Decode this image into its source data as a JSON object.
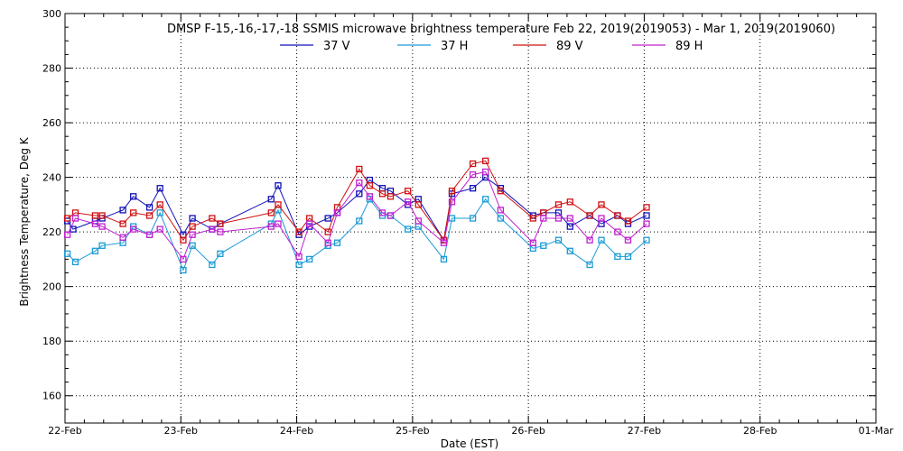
{
  "chart_data": {
    "type": "line",
    "title": "DMSP F-15,-16,-17,-18 SSMIS microwave brightness temperature Feb 22, 2019(2019053) - Mar  1, 2019(2019060)",
    "xlabel": "Date (EST)",
    "ylabel": "Brightness Temperature, Deg K",
    "xlim": [
      0,
      7
    ],
    "ylim": [
      150,
      300
    ],
    "y_ticks": [
      160,
      180,
      200,
      220,
      240,
      260,
      280,
      300
    ],
    "x_ticks": [
      {
        "v": 0,
        "label": "22-Feb"
      },
      {
        "v": 1,
        "label": "23-Feb"
      },
      {
        "v": 2,
        "label": "24-Feb"
      },
      {
        "v": 3,
        "label": "25-Feb"
      },
      {
        "v": 4,
        "label": "26-Feb"
      },
      {
        "v": 5,
        "label": "27-Feb"
      },
      {
        "v": 6,
        "label": "28-Feb"
      },
      {
        "v": 7,
        "label": "01-Mar"
      }
    ],
    "grid": true,
    "legend_position": "top-center",
    "series": [
      {
        "name": "37 V",
        "color": "#1010b8",
        "x": [
          0.02,
          0.07,
          0.26,
          0.32,
          0.5,
          0.59,
          0.73,
          0.82,
          1.02,
          1.1,
          1.27,
          1.34,
          1.78,
          1.84,
          2.02,
          2.11,
          2.27,
          2.35,
          2.54,
          2.63,
          2.74,
          2.81,
          2.96,
          3.05,
          3.27,
          3.34,
          3.52,
          3.63,
          3.76,
          4.04,
          4.13,
          4.26,
          4.36,
          4.53,
          4.63,
          4.77,
          4.86,
          5.02
        ],
        "y": [
          224,
          221,
          224,
          225,
          228,
          233,
          229,
          236,
          219,
          225,
          221,
          223,
          232,
          237,
          219,
          222,
          225,
          227,
          234,
          239,
          236,
          235,
          230,
          232,
          217,
          234,
          236,
          240,
          236,
          226,
          227,
          227,
          222,
          226,
          223,
          226,
          223,
          226
        ]
      },
      {
        "name": "37 H",
        "color": "#1a9ad6",
        "x": [
          0.02,
          0.09,
          0.26,
          0.32,
          0.5,
          0.59,
          0.73,
          0.82,
          1.02,
          1.1,
          1.27,
          1.34,
          1.78,
          1.84,
          2.02,
          2.11,
          2.27,
          2.35,
          2.54,
          2.63,
          2.74,
          2.81,
          2.96,
          3.05,
          3.27,
          3.34,
          3.52,
          3.63,
          3.76,
          4.04,
          4.13,
          4.26,
          4.36,
          4.53,
          4.63,
          4.77,
          4.86,
          5.02
        ],
        "y": [
          212,
          209,
          213,
          215,
          216,
          222,
          219,
          227,
          206,
          215,
          208,
          212,
          223,
          228,
          208,
          210,
          215,
          216,
          224,
          232,
          226,
          226,
          221,
          222,
          210,
          225,
          225,
          232,
          225,
          214,
          215,
          217,
          213,
          208,
          217,
          211,
          211,
          217
        ]
      },
      {
        "name": "89 V",
        "color": "#d01010",
        "x": [
          0.02,
          0.09,
          0.26,
          0.32,
          0.5,
          0.59,
          0.73,
          0.82,
          1.02,
          1.1,
          1.27,
          1.34,
          1.78,
          1.84,
          2.02,
          2.11,
          2.27,
          2.35,
          2.54,
          2.63,
          2.74,
          2.81,
          2.96,
          3.05,
          3.27,
          3.34,
          3.52,
          3.63,
          3.76,
          4.04,
          4.13,
          4.26,
          4.36,
          4.53,
          4.63,
          4.77,
          4.86,
          5.02
        ],
        "y": [
          225,
          227,
          226,
          226,
          223,
          227,
          226,
          230,
          217,
          222,
          225,
          223,
          227,
          230,
          220,
          225,
          220,
          229,
          243,
          237,
          234,
          233,
          235,
          230,
          217,
          235,
          245,
          246,
          235,
          225,
          227,
          230,
          231,
          226,
          230,
          226,
          224,
          229
        ]
      },
      {
        "name": "89 H",
        "color": "#c020d0",
        "x": [
          0.02,
          0.09,
          0.26,
          0.32,
          0.5,
          0.59,
          0.73,
          0.82,
          1.02,
          1.1,
          1.27,
          1.34,
          1.78,
          1.84,
          2.02,
          2.11,
          2.27,
          2.35,
          2.54,
          2.63,
          2.74,
          2.81,
          2.96,
          3.05,
          3.27,
          3.34,
          3.52,
          3.63,
          3.76,
          4.04,
          4.13,
          4.26,
          4.36,
          4.53,
          4.63,
          4.77,
          4.86,
          5.02
        ],
        "y": [
          219,
          225,
          223,
          222,
          218,
          221,
          219,
          221,
          210,
          219,
          221,
          220,
          222,
          223,
          211,
          223,
          216,
          227,
          238,
          233,
          227,
          226,
          231,
          224,
          216,
          231,
          241,
          242,
          228,
          216,
          225,
          225,
          225,
          217,
          225,
          220,
          217,
          223
        ]
      }
    ]
  }
}
